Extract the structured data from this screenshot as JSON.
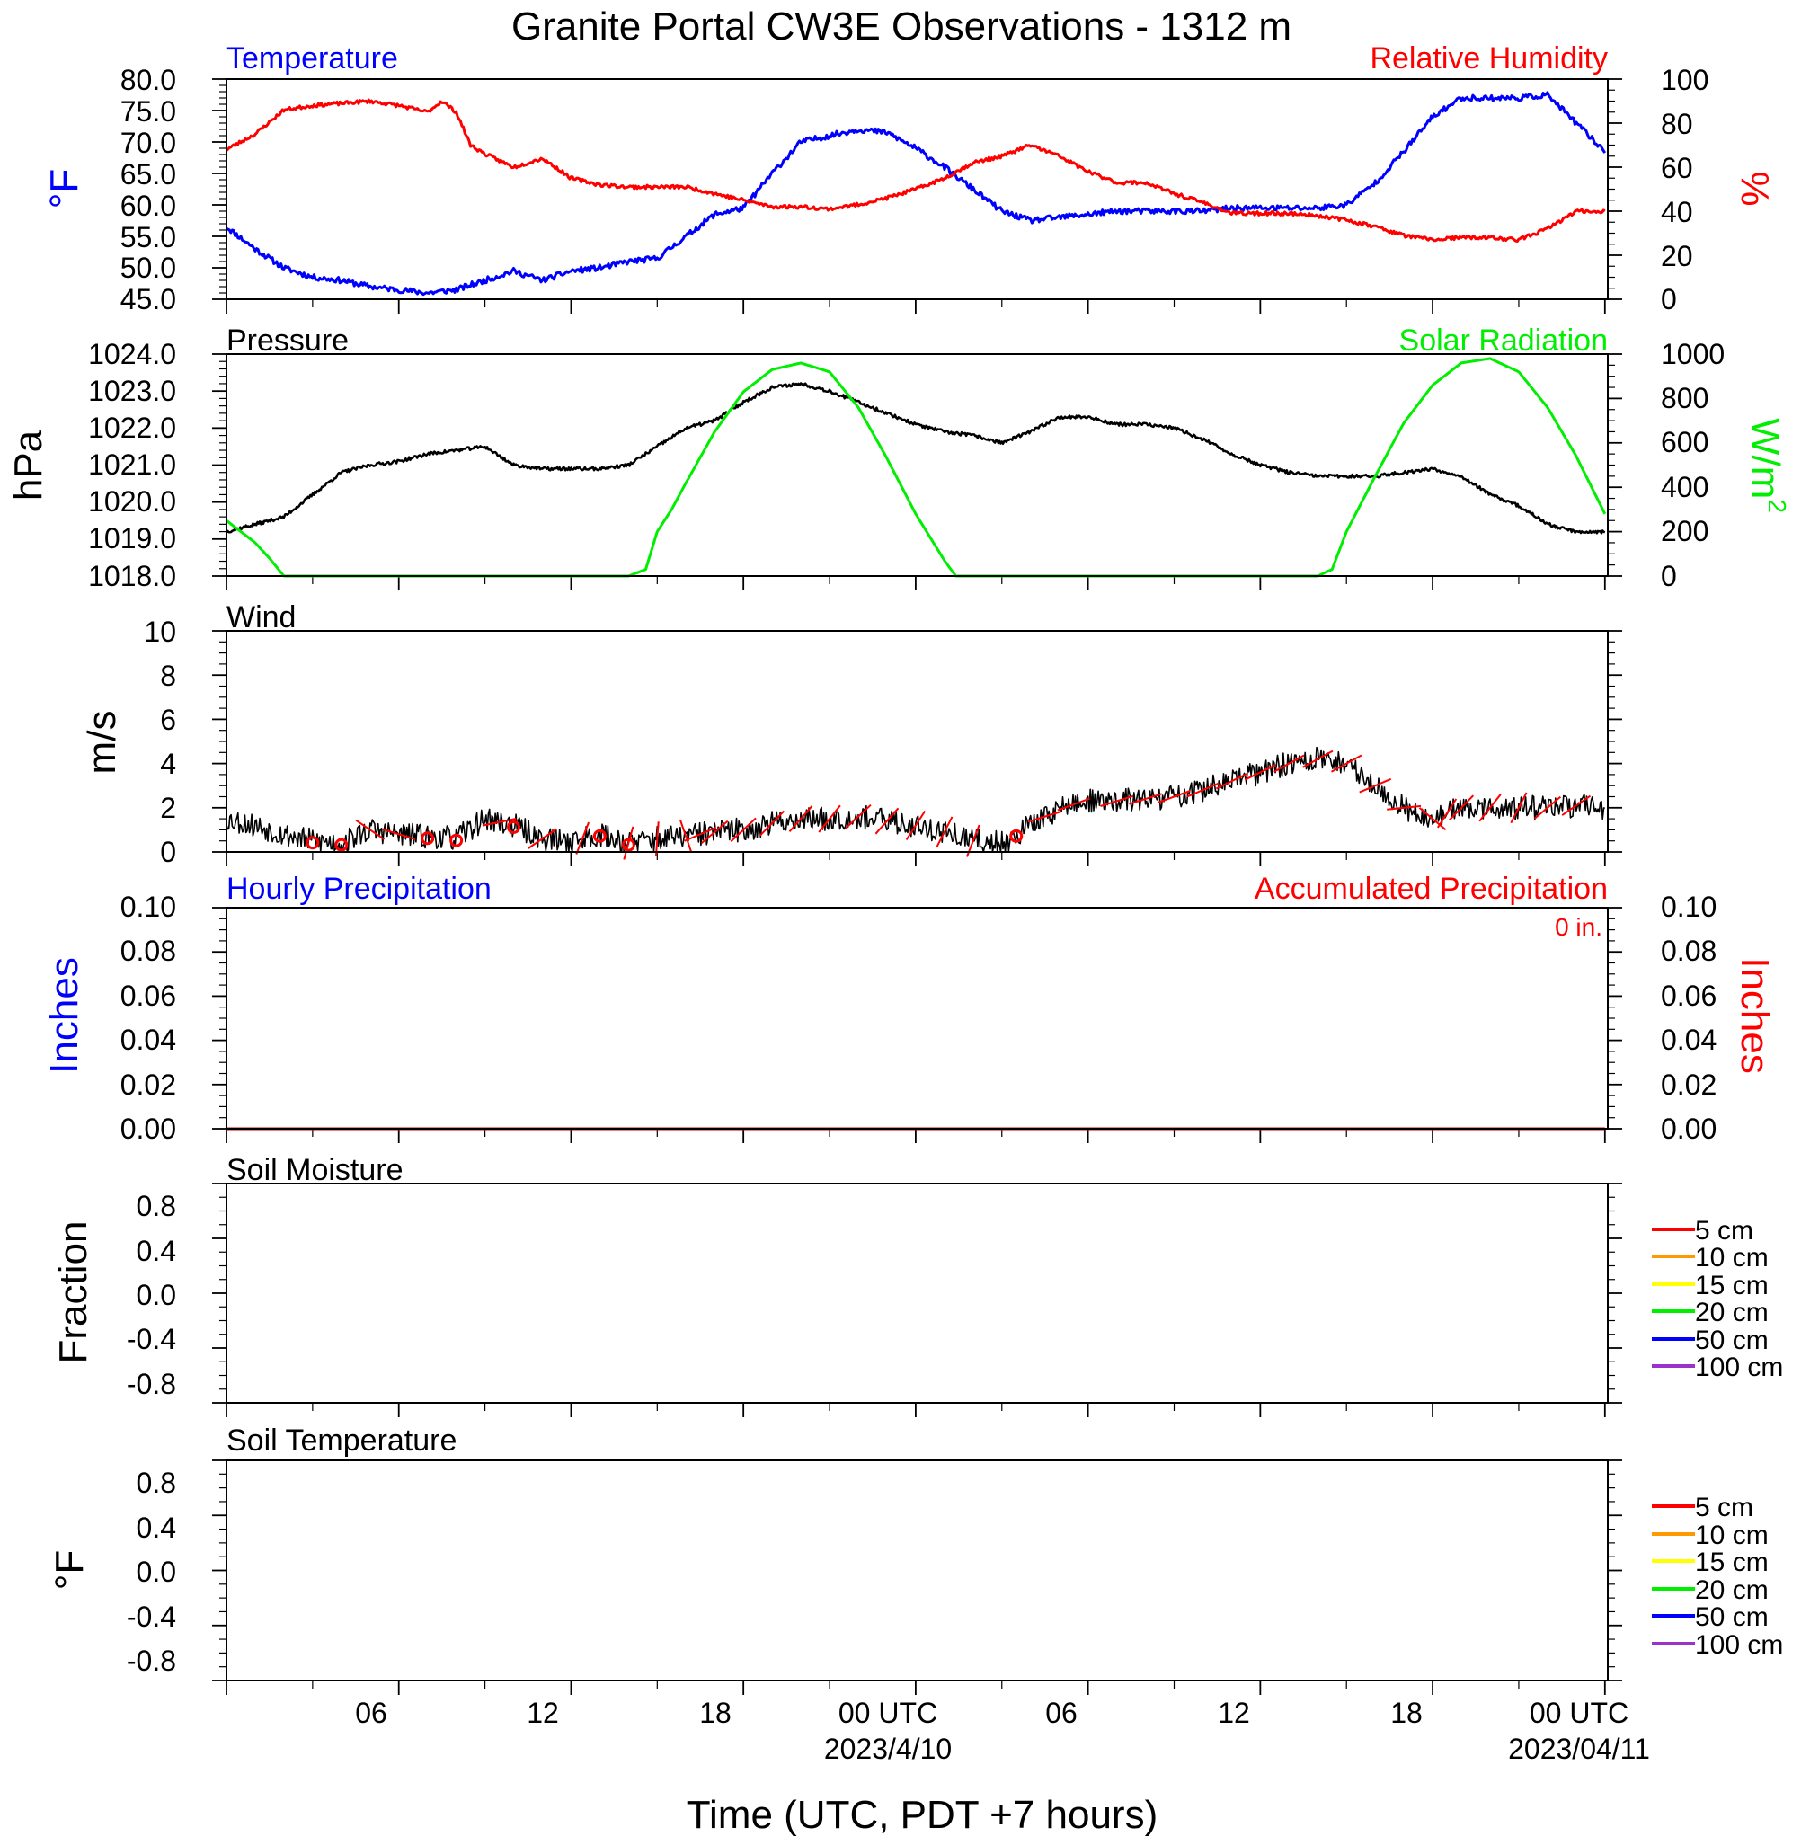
{
  "title": "Granite Portal CW3E Observations - 1312 m",
  "xaxis": {
    "label": "Time (UTC, PDT +7 hours)",
    "ticks": [
      {
        "hour": 6,
        "label": "06",
        "date": ""
      },
      {
        "hour": 12,
        "label": "12",
        "date": ""
      },
      {
        "hour": 18,
        "label": "18",
        "date": ""
      },
      {
        "hour": 24,
        "label": "00 UTC",
        "date": "2023/4/10"
      },
      {
        "hour": 30,
        "label": "06",
        "date": ""
      },
      {
        "hour": 36,
        "label": "12",
        "date": ""
      },
      {
        "hour": 42,
        "label": "18",
        "date": ""
      },
      {
        "hour": 48,
        "label": "00 UTC",
        "date": "2023/04/11"
      }
    ],
    "range_hours": [
      0,
      48.1
    ]
  },
  "colors": {
    "temperature": "#0000ff",
    "humidity": "#ff0000",
    "pressure": "#000000",
    "solar": "#00ee00",
    "wind": "#000000",
    "barbs": "#ff0000",
    "precip": "#cc0000"
  },
  "panels": {
    "temperature": {
      "title_left": "Temperature",
      "title_right": "Relative Humidity",
      "ylabel_left": "°F",
      "ylabel_right": "%",
      "left_ticks": [
        "80.0",
        "75.0",
        "70.0",
        "65.0",
        "60.0",
        "55.0",
        "50.0",
        "45.0"
      ],
      "right_ticks": [
        "100",
        "80",
        "60",
        "40",
        "20",
        "0"
      ]
    },
    "pressure": {
      "title_left": "Pressure",
      "title_right": "Solar Radiation",
      "ylabel_left": "hPa",
      "ylabel_right_base": "W/m",
      "ylabel_right_sup": "2",
      "left_ticks": [
        "1024.0",
        "1023.0",
        "1022.0",
        "1021.0",
        "1020.0",
        "1019.0",
        "1018.0"
      ],
      "right_ticks": [
        "1000",
        "800",
        "600",
        "400",
        "200",
        "0"
      ]
    },
    "wind": {
      "title_left": "Wind",
      "ylabel_left": "m/s",
      "left_ticks": [
        "10",
        "8",
        "6",
        "4",
        "2",
        "0"
      ]
    },
    "precip": {
      "title_left": "Hourly Precipitation",
      "title_right": "Accumulated Precipitation",
      "annotation": "0 in.",
      "ylabel_left": "Inches",
      "ylabel_right": "Inches",
      "left_ticks": [
        "0.10",
        "0.08",
        "0.06",
        "0.04",
        "0.02",
        "0.00"
      ],
      "right_ticks": [
        "0.10",
        "0.08",
        "0.06",
        "0.04",
        "0.02",
        "0.00"
      ]
    },
    "soil_moisture": {
      "title_left": "Soil Moisture",
      "ylabel_left": "Fraction",
      "left_ticks": [
        "0.8",
        "0.4",
        "0.0",
        "-0.4",
        "-0.8"
      ],
      "legend": [
        {
          "label": "5 cm",
          "color": "#ff0000"
        },
        {
          "label": "10 cm",
          "color": "#ff9900"
        },
        {
          "label": "15 cm",
          "color": "#ffff00"
        },
        {
          "label": "20 cm",
          "color": "#00ee00"
        },
        {
          "label": "50 cm",
          "color": "#0000ff"
        },
        {
          "label": "100 cm",
          "color": "#9933cc"
        }
      ]
    },
    "soil_temperature": {
      "title_left": "Soil Temperature",
      "ylabel_left": "°F",
      "left_ticks": [
        "0.8",
        "0.4",
        "0.0",
        "-0.4",
        "-0.8"
      ],
      "legend": [
        {
          "label": "5 cm",
          "color": "#ff0000"
        },
        {
          "label": "10 cm",
          "color": "#ff9900"
        },
        {
          "label": "15 cm",
          "color": "#ffff00"
        },
        {
          "label": "20 cm",
          "color": "#00ee00"
        },
        {
          "label": "50 cm",
          "color": "#0000ff"
        },
        {
          "label": "100 cm",
          "color": "#9933cc"
        }
      ]
    }
  },
  "chart_data": [
    {
      "type": "line",
      "title": "Temperature",
      "ylabel": "°F",
      "ylim": [
        45,
        80
      ],
      "x_unit": "hours since 2023/4/9 00 UTC",
      "series": [
        {
          "name": "Temperature",
          "x": [
            0,
            1,
            2,
            3,
            4,
            5,
            6,
            7,
            8,
            9,
            10,
            11,
            12,
            13,
            14,
            15,
            16,
            17,
            18,
            19,
            20,
            21,
            22,
            23,
            24,
            25,
            26,
            27,
            28,
            29,
            30,
            31,
            32,
            33,
            34,
            35,
            36,
            37,
            38,
            39,
            40,
            41,
            42,
            43,
            44,
            45,
            46,
            47,
            48
          ],
          "y": [
            56.5,
            53.0,
            50.0,
            48.5,
            48.0,
            47.0,
            46.5,
            46.0,
            46.5,
            48.0,
            49.5,
            48.0,
            49.5,
            50.0,
            51.0,
            51.5,
            55.0,
            58.5,
            59.5,
            65.0,
            70.0,
            71.0,
            72.0,
            71.5,
            69.0,
            66.0,
            62.5,
            59.0,
            57.5,
            58.0,
            58.5,
            59.0,
            59.0,
            59.0,
            59.0,
            59.5,
            59.5,
            59.5,
            59.5,
            60.0,
            63.5,
            68.5,
            74.0,
            77.0,
            77.0,
            77.0,
            77.5,
            73.0,
            68.5
          ]
        }
      ]
    },
    {
      "type": "line",
      "title": "Relative Humidity",
      "ylabel": "%",
      "ylim": [
        0,
        100
      ],
      "x_unit": "hours since 2023/4/9 00 UTC",
      "series": [
        {
          "name": "Relative Humidity",
          "x": [
            0,
            1,
            2,
            3,
            4,
            5,
            6,
            7,
            7.5,
            8,
            8.5,
            9,
            10,
            11,
            12,
            13,
            14,
            15,
            16,
            17,
            18,
            19,
            20,
            21,
            22,
            23,
            24,
            25,
            26,
            27,
            28,
            29,
            30,
            31,
            32,
            33,
            34,
            35,
            36,
            37,
            38,
            39,
            40,
            41,
            42,
            43,
            44,
            45,
            46,
            47,
            48
          ],
          "y": [
            68,
            75,
            86,
            88,
            89,
            90,
            88,
            85,
            90,
            85,
            70,
            66,
            60,
            64,
            55,
            52,
            51,
            51,
            51,
            48,
            45,
            42,
            42,
            41,
            43,
            46,
            50,
            55,
            62,
            65,
            70,
            65,
            58,
            53,
            53,
            48,
            44,
            39,
            39,
            39,
            38,
            36,
            33,
            29,
            27,
            28,
            28,
            27,
            32,
            40,
            40
          ]
        }
      ]
    },
    {
      "type": "line",
      "title": "Pressure",
      "ylabel": "hPa",
      "ylim": [
        1018,
        1024
      ],
      "x_unit": "hours since 2023/4/9 00 UTC",
      "series": [
        {
          "name": "Pressure",
          "x": [
            0,
            1,
            2,
            3,
            4,
            5,
            6,
            7,
            8,
            9,
            10,
            11,
            12,
            13,
            14,
            15,
            16,
            17,
            18,
            19,
            20,
            21,
            22,
            23,
            24,
            25,
            26,
            27,
            28,
            29,
            30,
            31,
            32,
            33,
            34,
            35,
            36,
            37,
            38,
            39,
            40,
            41,
            42,
            43,
            44,
            45,
            46,
            47,
            48
          ],
          "y": [
            1019.2,
            1019.4,
            1019.6,
            1020.2,
            1020.8,
            1021.0,
            1021.1,
            1021.3,
            1021.4,
            1021.5,
            1021.0,
            1020.9,
            1020.9,
            1020.9,
            1021.0,
            1021.5,
            1022.0,
            1022.2,
            1022.7,
            1023.1,
            1023.2,
            1023.0,
            1022.7,
            1022.4,
            1022.1,
            1021.9,
            1021.8,
            1021.6,
            1021.9,
            1022.3,
            1022.3,
            1022.1,
            1022.1,
            1022.0,
            1021.7,
            1021.3,
            1021.0,
            1020.8,
            1020.7,
            1020.7,
            1020.7,
            1020.8,
            1020.9,
            1020.7,
            1020.2,
            1019.9,
            1019.4,
            1019.2,
            1019.2
          ]
        }
      ]
    },
    {
      "type": "line",
      "title": "Solar Radiation",
      "ylabel": "W/m2",
      "ylim": [
        0,
        1000
      ],
      "x_unit": "hours since 2023/4/9 00 UTC",
      "series": [
        {
          "name": "Solar Radiation",
          "x": [
            0,
            0.5,
            1,
            1.5,
            2,
            3,
            4,
            5,
            6,
            7,
            8,
            9,
            10,
            11,
            12,
            13,
            14,
            14.6,
            15,
            15.5,
            16,
            17,
            18,
            19,
            20,
            21,
            22,
            23,
            24,
            25,
            25.4,
            26,
            30,
            35,
            37,
            38,
            38.5,
            39,
            40,
            41,
            42,
            43,
            44,
            45,
            46,
            47,
            48
          ],
          "y": [
            250,
            200,
            150,
            80,
            0,
            0,
            0,
            0,
            0,
            0,
            0,
            0,
            0,
            0,
            0,
            0,
            0,
            30,
            200,
            300,
            420,
            650,
            830,
            930,
            960,
            920,
            760,
            530,
            280,
            70,
            0,
            0,
            0,
            0,
            0,
            0,
            30,
            200,
            450,
            690,
            860,
            960,
            980,
            920,
            760,
            540,
            280
          ]
        }
      ]
    },
    {
      "type": "line",
      "title": "Wind",
      "ylabel": "m/s",
      "ylim": [
        0,
        10
      ],
      "x_unit": "hours since 2023/4/9 00 UTC",
      "series": [
        {
          "name": "Wind",
          "x": [
            0,
            1,
            2,
            3,
            4,
            5,
            6,
            7,
            8,
            9,
            10,
            11,
            12,
            13,
            14,
            15,
            16,
            17,
            18,
            19,
            20,
            21,
            22,
            23,
            24,
            25,
            26,
            27,
            28,
            29,
            30,
            31,
            32,
            33,
            34,
            35,
            36,
            37,
            38,
            39,
            40,
            41,
            42,
            43,
            44,
            45,
            46,
            47,
            48
          ],
          "y": [
            1.5,
            1.2,
            0.8,
            0.5,
            0.4,
            1.0,
            0.8,
            0.7,
            0.6,
            1.5,
            1.2,
            0.6,
            0.5,
            0.8,
            0.4,
            0.6,
            0.7,
            0.9,
            1.0,
            1.3,
            1.5,
            1.5,
            1.6,
            1.4,
            1.2,
            0.9,
            0.5,
            0.4,
            1.2,
            2.0,
            2.3,
            2.3,
            2.4,
            2.5,
            2.8,
            3.2,
            3.6,
            4.0,
            4.2,
            4.0,
            3.0,
            2.0,
            1.5,
            2.0,
            2.0,
            2.0,
            2.0,
            2.1,
            2.0
          ]
        }
      ]
    },
    {
      "type": "line",
      "title": "Hourly Precipitation",
      "ylabel": "Inches",
      "ylim": [
        0,
        0.1
      ],
      "x_unit": "hours since 2023/4/9 00 UTC",
      "series": [
        {
          "name": "Accumulated Precipitation",
          "x": [
            0,
            48
          ],
          "y": [
            0,
            0
          ]
        }
      ]
    }
  ]
}
